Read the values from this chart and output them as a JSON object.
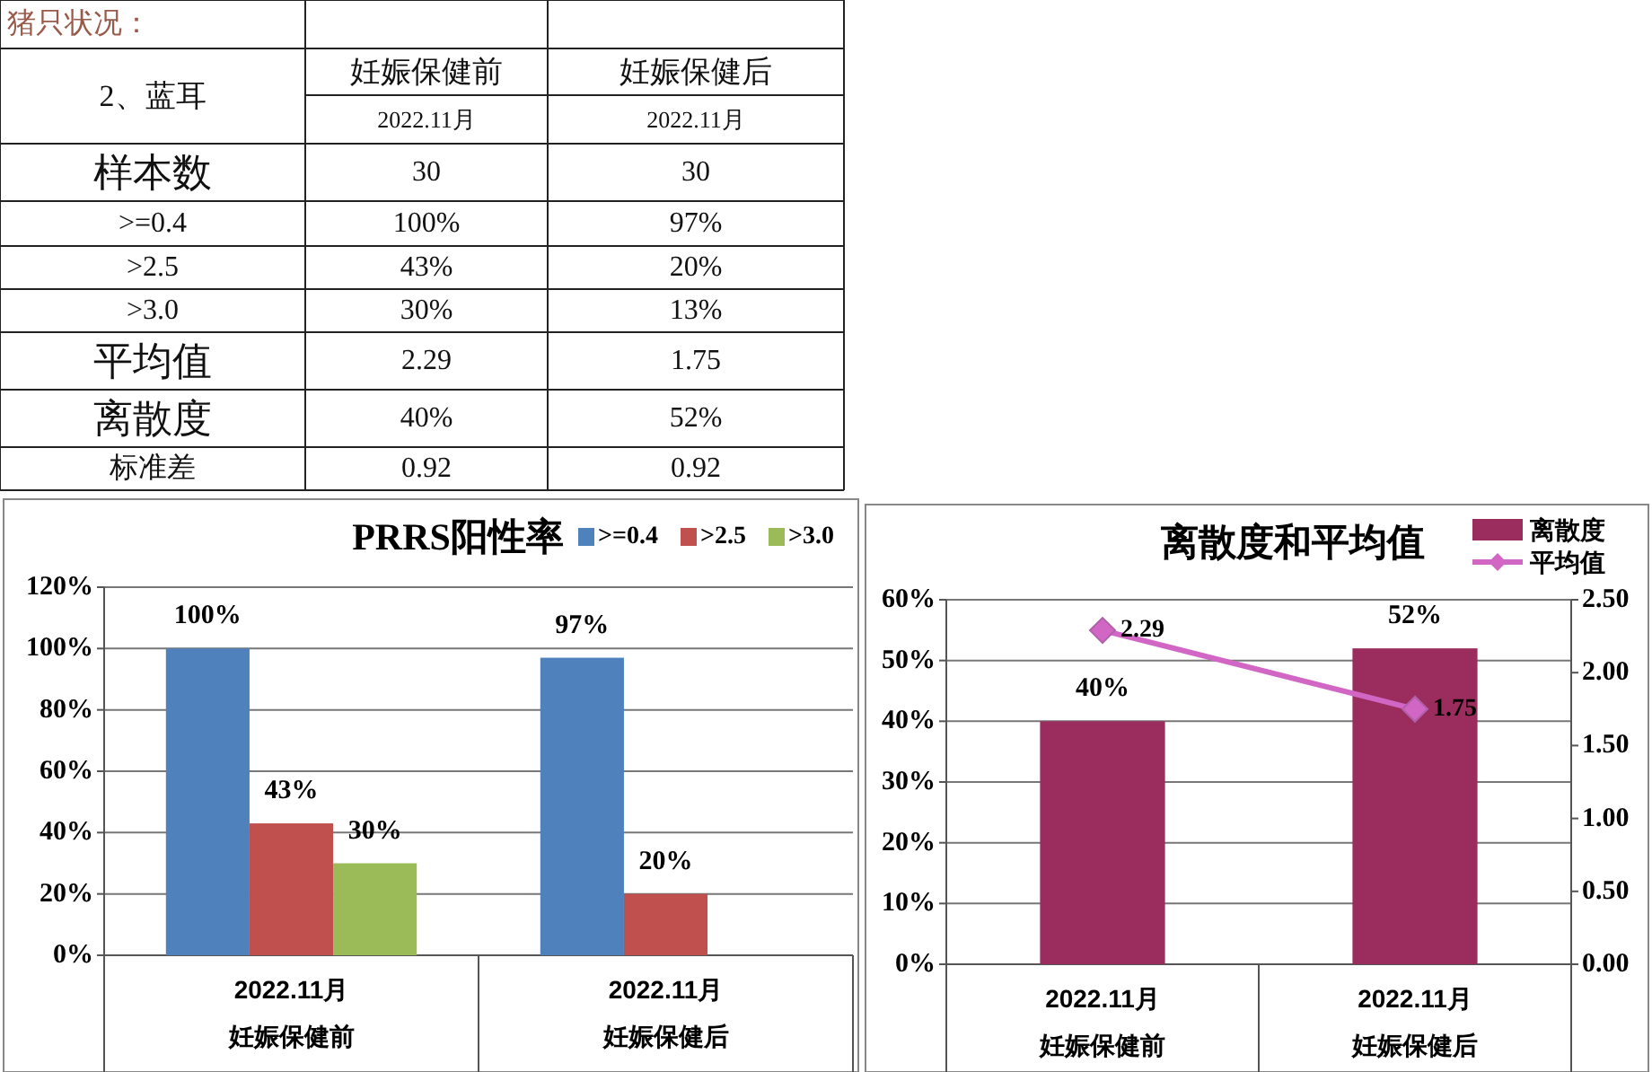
{
  "chart_data": [
    {
      "type": "other",
      "annotations": [
        "猪只状况：",
        "2、蓝耳",
        "妊娠保健前",
        "妊娠保健后",
        "2022.11月",
        "2022.11月",
        "样本数",
        "30",
        "30",
        ">=0.4",
        "100%",
        "97%",
        ">2.5",
        "43%",
        "20%",
        ">3.0",
        "30%",
        "13%",
        "平均值",
        "2.29",
        "1.75",
        "离散度",
        "40%",
        "52%",
        "标准差",
        "0.92",
        "0.92"
      ]
    },
    {
      "type": "bar",
      "title": "PRRS阳性率",
      "categories": [
        "2022.11月妊娠保健前",
        "2022.11月妊娠保健后"
      ],
      "series": [
        {
          "name": ">=0.4",
          "color": "#4f81bd",
          "values": [
            100,
            97
          ],
          "value_labels": [
            "100%",
            "97%"
          ]
        },
        {
          "name": ">2.5",
          "color": "#c0504d",
          "values": [
            43,
            20
          ],
          "value_labels": [
            "43%",
            "20%"
          ]
        },
        {
          "name": ">3.0",
          "color": "#9bbb59",
          "values": [
            30,
            null
          ],
          "value_labels": [
            "30%",
            null
          ]
        }
      ],
      "ylim": [
        0,
        120
      ],
      "yticks": [
        {
          "value": 0,
          "label": "0%"
        },
        {
          "value": 20,
          "label": "20%"
        },
        {
          "value": 40,
          "label": "40%"
        },
        {
          "value": 60,
          "label": "60%"
        },
        {
          "value": 80,
          "label": "80%"
        },
        {
          "value": 100,
          "label": "100%"
        },
        {
          "value": 120,
          "label": "120%"
        }
      ],
      "grid": "y",
      "legend": "top right"
    },
    {
      "type": "bar",
      "title": "离散度和平均值",
      "categories": [
        "2022.11月妊娠保健前",
        "2022.11月妊娠保健后"
      ],
      "series": [
        {
          "name": "离散度",
          "color": "#9b2d5e",
          "values": [
            40,
            52
          ],
          "value_labels": [
            "40%",
            "52%"
          ]
        },
        {
          "name": "平均值",
          "type": "line",
          "axis": "y2",
          "color": "#d166c4",
          "values": [
            2.29,
            1.75
          ],
          "value_labels": [
            "2.29",
            "1.75"
          ]
        }
      ],
      "ylim": [
        0,
        60
      ],
      "yticks": [
        {
          "value": 0,
          "label": "0%"
        },
        {
          "value": 10,
          "label": "10%"
        },
        {
          "value": 20,
          "label": "20%"
        },
        {
          "value": 30,
          "label": "30%"
        },
        {
          "value": 40,
          "label": "40%"
        },
        {
          "value": 50,
          "label": "50%"
        },
        {
          "value": 60,
          "label": "60%"
        }
      ],
      "y2lim": [
        0,
        2.5
      ],
      "y2ticks": [
        {
          "value": 0,
          "label": "0.00"
        },
        {
          "value": 0.5,
          "label": "0.50"
        },
        {
          "value": 1,
          "label": "1.00"
        },
        {
          "value": 1.5,
          "label": "1.50"
        },
        {
          "value": 2,
          "label": "2.00"
        },
        {
          "value": 2.5,
          "label": "2.50"
        }
      ],
      "grid": "y",
      "legend": "top right",
      "marker": "diamond"
    }
  ]
}
